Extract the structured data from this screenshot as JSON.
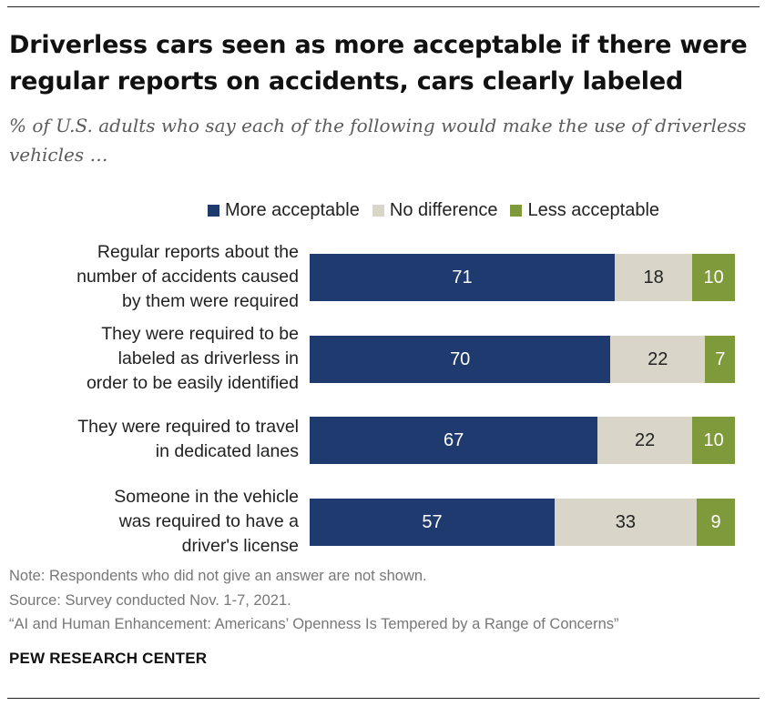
{
  "title": "Driverless cars seen as more acceptable if there were regular reports on accidents, cars clearly labeled",
  "subtitle": "% of U.S. adults who say each of the following would make the use of driverless vehicles …",
  "colors": {
    "more": "#1f3a6e",
    "no_diff": "#d9d5c8",
    "less": "#7f9a3a",
    "more_text": "#ffffff",
    "no_diff_text": "#222222",
    "less_text": "#ffffff"
  },
  "chart_data": {
    "type": "bar",
    "orientation": "horizontal",
    "stacked": true,
    "title": "Driverless cars seen as more acceptable if there were regular reports on accidents, cars clearly labeled",
    "categories": [
      "Regular reports about the number of accidents caused by them were required",
      "They were required to be labeled as driverless in order to be easily identified",
      "They were required to travel in dedicated lanes",
      "Someone in the vehicle was required to have a driver's license"
    ],
    "category_lines": [
      [
        "Regular reports about the",
        "number of accidents caused",
        "by them were required"
      ],
      [
        "They were required to be",
        "labeled as driverless in",
        "order to be easily identified"
      ],
      [
        "They were required to travel",
        "in dedicated lanes"
      ],
      [
        "Someone in the vehicle",
        "was required to have a",
        "driver's license"
      ]
    ],
    "series": [
      {
        "name": "More acceptable",
        "values": [
          71,
          70,
          67,
          57
        ]
      },
      {
        "name": "No difference",
        "values": [
          18,
          22,
          22,
          33
        ]
      },
      {
        "name": "Less acceptable",
        "values": [
          10,
          7,
          10,
          9
        ]
      }
    ],
    "xlim": [
      0,
      100
    ],
    "xlabel": "",
    "ylabel": "",
    "grid": false,
    "legend_position": "top-right"
  },
  "notes": {
    "note": "Note: Respondents who did not give an answer are not shown.",
    "source": "Source: Survey conducted Nov. 1-7, 2021.",
    "report": "“AI and Human Enhancement: Americans’ Openness Is Tempered by a Range of Concerns”"
  },
  "brand": "PEW RESEARCH CENTER"
}
